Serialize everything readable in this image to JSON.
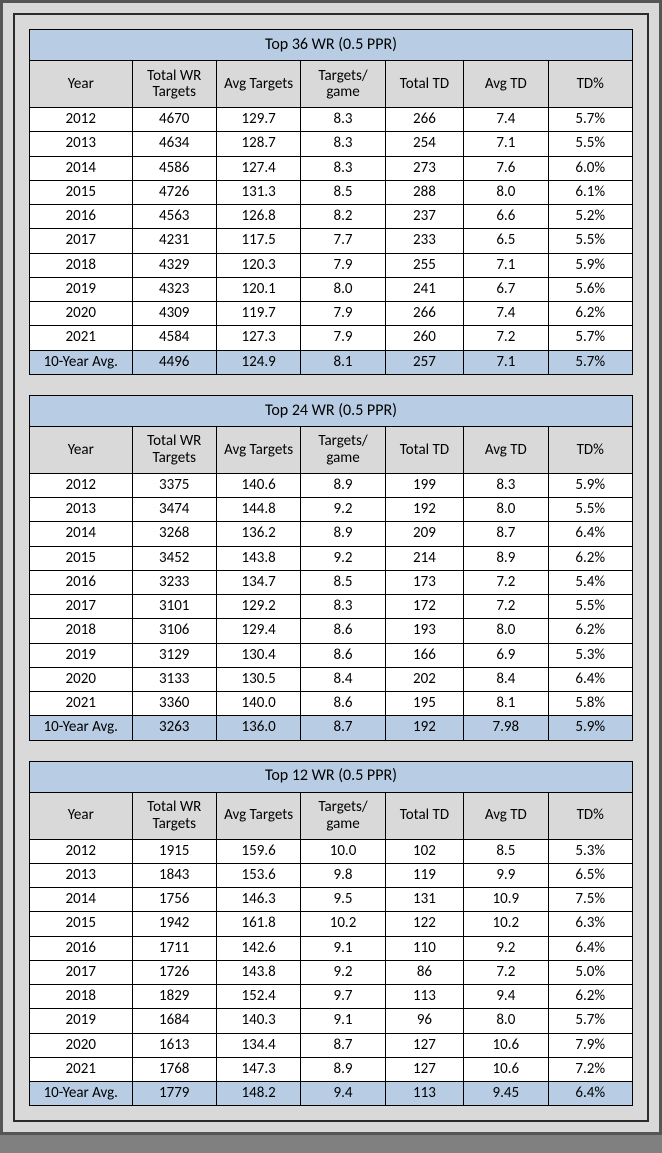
{
  "colors": {
    "page_bg": "#d9d9d9",
    "outer_border": "#555555",
    "inner_border": "#2b2b2b",
    "cell_border": "#000000",
    "title_bg": "#b8cce4",
    "header_bg": "#d9d9d9",
    "row_bg": "#ffffff",
    "avg_bg": "#b8cce4"
  },
  "columns": [
    "Year",
    "Total WR Targets",
    "Avg Targets",
    "Targets/ game",
    "Total TD",
    "Avg TD",
    "TD%"
  ],
  "tables": [
    {
      "title": "Top 36 WR (0.5 PPR)",
      "rows": [
        [
          "2012",
          "4670",
          "129.7",
          "8.3",
          "266",
          "7.4",
          "5.7%"
        ],
        [
          "2013",
          "4634",
          "128.7",
          "8.3",
          "254",
          "7.1",
          "5.5%"
        ],
        [
          "2014",
          "4586",
          "127.4",
          "8.3",
          "273",
          "7.6",
          "6.0%"
        ],
        [
          "2015",
          "4726",
          "131.3",
          "8.5",
          "288",
          "8.0",
          "6.1%"
        ],
        [
          "2016",
          "4563",
          "126.8",
          "8.2",
          "237",
          "6.6",
          "5.2%"
        ],
        [
          "2017",
          "4231",
          "117.5",
          "7.7",
          "233",
          "6.5",
          "5.5%"
        ],
        [
          "2018",
          "4329",
          "120.3",
          "7.9",
          "255",
          "7.1",
          "5.9%"
        ],
        [
          "2019",
          "4323",
          "120.1",
          "8.0",
          "241",
          "6.7",
          "5.6%"
        ],
        [
          "2020",
          "4309",
          "119.7",
          "7.9",
          "266",
          "7.4",
          "6.2%"
        ],
        [
          "2021",
          "4584",
          "127.3",
          "7.9",
          "260",
          "7.2",
          "5.7%"
        ]
      ],
      "avg": [
        "10-Year Avg.",
        "4496",
        "124.9",
        "8.1",
        "257",
        "7.1",
        "5.7%"
      ]
    },
    {
      "title": "Top 24 WR (0.5 PPR)",
      "rows": [
        [
          "2012",
          "3375",
          "140.6",
          "8.9",
          "199",
          "8.3",
          "5.9%"
        ],
        [
          "2013",
          "3474",
          "144.8",
          "9.2",
          "192",
          "8.0",
          "5.5%"
        ],
        [
          "2014",
          "3268",
          "136.2",
          "8.9",
          "209",
          "8.7",
          "6.4%"
        ],
        [
          "2015",
          "3452",
          "143.8",
          "9.2",
          "214",
          "8.9",
          "6.2%"
        ],
        [
          "2016",
          "3233",
          "134.7",
          "8.5",
          "173",
          "7.2",
          "5.4%"
        ],
        [
          "2017",
          "3101",
          "129.2",
          "8.3",
          "172",
          "7.2",
          "5.5%"
        ],
        [
          "2018",
          "3106",
          "129.4",
          "8.6",
          "193",
          "8.0",
          "6.2%"
        ],
        [
          "2019",
          "3129",
          "130.4",
          "8.6",
          "166",
          "6.9",
          "5.3%"
        ],
        [
          "2020",
          "3133",
          "130.5",
          "8.4",
          "202",
          "8.4",
          "6.4%"
        ],
        [
          "2021",
          "3360",
          "140.0",
          "8.6",
          "195",
          "8.1",
          "5.8%"
        ]
      ],
      "avg": [
        "10-Year Avg.",
        "3263",
        "136.0",
        "8.7",
        "192",
        "7.98",
        "5.9%"
      ]
    },
    {
      "title": "Top 12 WR (0.5 PPR)",
      "rows": [
        [
          "2012",
          "1915",
          "159.6",
          "10.0",
          "102",
          "8.5",
          "5.3%"
        ],
        [
          "2013",
          "1843",
          "153.6",
          "9.8",
          "119",
          "9.9",
          "6.5%"
        ],
        [
          "2014",
          "1756",
          "146.3",
          "9.5",
          "131",
          "10.9",
          "7.5%"
        ],
        [
          "2015",
          "1942",
          "161.8",
          "10.2",
          "122",
          "10.2",
          "6.3%"
        ],
        [
          "2016",
          "1711",
          "142.6",
          "9.1",
          "110",
          "9.2",
          "6.4%"
        ],
        [
          "2017",
          "1726",
          "143.8",
          "9.2",
          "86",
          "7.2",
          "5.0%"
        ],
        [
          "2018",
          "1829",
          "152.4",
          "9.7",
          "113",
          "9.4",
          "6.2%"
        ],
        [
          "2019",
          "1684",
          "140.3",
          "9.1",
          "96",
          "8.0",
          "5.7%"
        ],
        [
          "2020",
          "1613",
          "134.4",
          "8.7",
          "127",
          "10.6",
          "7.9%"
        ],
        [
          "2021",
          "1768",
          "147.3",
          "8.9",
          "127",
          "10.6",
          "7.2%"
        ]
      ],
      "avg": [
        "10-Year Avg.",
        "1779",
        "148.2",
        "9.4",
        "113",
        "9.45",
        "6.4%"
      ]
    }
  ]
}
